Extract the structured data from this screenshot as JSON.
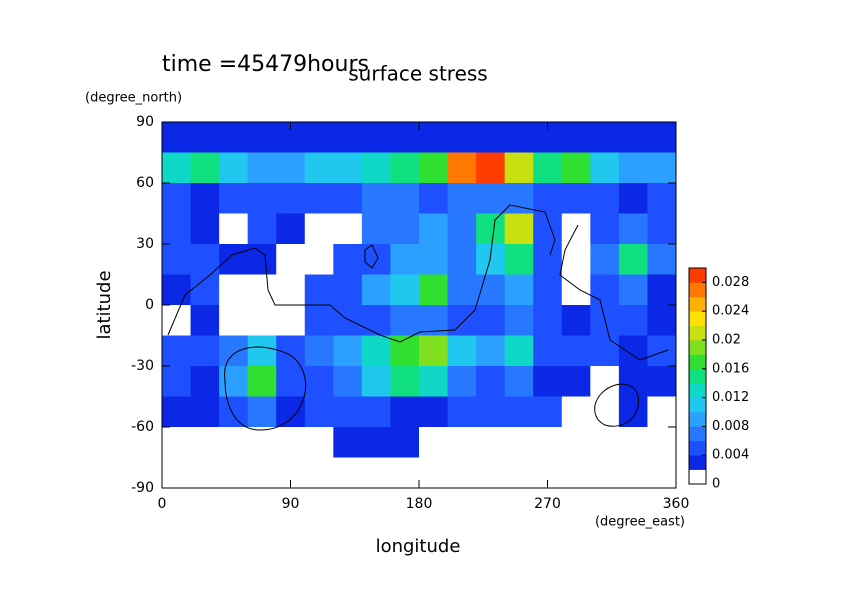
{
  "chart_data": {
    "type": "contour",
    "title": "surface stress",
    "subtitle": "time =45479hours",
    "xlabel": "longitude",
    "xunit": "(degree_east)",
    "ylabel": "latitude",
    "yunit": "(degree_north)",
    "xlim": [
      0,
      360
    ],
    "xticks": [
      0,
      90,
      180,
      270,
      360
    ],
    "ylim": [
      -90,
      90
    ],
    "yticks": [
      -90,
      -60,
      -30,
      0,
      30,
      60,
      90
    ],
    "x": [
      10,
      30,
      50,
      70,
      90,
      110,
      130,
      150,
      170,
      190,
      210,
      230,
      250,
      270,
      290,
      310,
      330,
      350
    ],
    "y": [
      82.5,
      67.5,
      52.5,
      37.5,
      22.5,
      7.5,
      -7.5,
      -22.5,
      -37.5,
      -52.5,
      -67.5,
      -82.5
    ],
    "z": [
      [
        0.003,
        0.003,
        0.003,
        0.003,
        0.003,
        0.003,
        0.003,
        0.003,
        0.003,
        0.003,
        0.003,
        0.003,
        0.003,
        0.003,
        0.003,
        0.003,
        0.003,
        0.003
      ],
      [
        0.012,
        0.014,
        0.01,
        0.008,
        0.008,
        0.01,
        0.01,
        0.012,
        0.014,
        0.016,
        0.026,
        0.032,
        0.02,
        0.014,
        0.016,
        0.01,
        0.008,
        0.008
      ],
      [
        0.004,
        0.003,
        0.004,
        0.004,
        0.005,
        0.004,
        0.005,
        0.006,
        0.006,
        0.005,
        0.006,
        0.006,
        0.006,
        0.005,
        0.004,
        0.004,
        0.003,
        0.004
      ],
      [
        0.004,
        0.003,
        0.001,
        0.004,
        0.003,
        0.001,
        0.001,
        0.006,
        0.006,
        0.008,
        0.006,
        0.014,
        0.02,
        0.004,
        0.001,
        0.004,
        0.006,
        0.004
      ],
      [
        0.004,
        0.005,
        0.003,
        0.003,
        0.001,
        0.001,
        0.004,
        0.005,
        0.008,
        0.008,
        0.006,
        0.01,
        0.014,
        0.004,
        0.001,
        0.006,
        0.014,
        0.006
      ],
      [
        0.003,
        0.004,
        0.001,
        0.001,
        0.001,
        0.004,
        0.005,
        0.008,
        0.01,
        0.016,
        0.006,
        0.006,
        0.008,
        0.004,
        0.001,
        0.004,
        0.006,
        0.003
      ],
      [
        0.001,
        0.002,
        0.001,
        0.001,
        0.001,
        0.004,
        0.004,
        0.005,
        0.006,
        0.006,
        0.004,
        0.004,
        0.006,
        0.004,
        0.003,
        0.004,
        0.004,
        0.002
      ],
      [
        0.004,
        0.005,
        0.006,
        0.01,
        0.005,
        0.006,
        0.008,
        0.012,
        0.016,
        0.018,
        0.01,
        0.008,
        0.012,
        0.005,
        0.004,
        0.004,
        0.003,
        0.004
      ],
      [
        0.004,
        0.003,
        0.008,
        0.016,
        0.005,
        0.005,
        0.006,
        0.01,
        0.014,
        0.012,
        0.006,
        0.004,
        0.006,
        0.003,
        0.002,
        0.001,
        0.003,
        0.003
      ],
      [
        0.003,
        0.002,
        0.004,
        0.006,
        0.003,
        0.004,
        0.004,
        0.004,
        0.003,
        0.003,
        0.004,
        0.004,
        0.005,
        0.004,
        0.001,
        0.001,
        0.002,
        0.001
      ],
      [
        0,
        0,
        0,
        0,
        0,
        0,
        0.003,
        0.003,
        0.002,
        0.001,
        0,
        0,
        0,
        0,
        0,
        0,
        0,
        0
      ],
      [
        0,
        0,
        0,
        0,
        0,
        0,
        0,
        0,
        0,
        0,
        0,
        0,
        0,
        0,
        0,
        0,
        0,
        0
      ]
    ],
    "colorbar": {
      "lim": [
        0,
        0.03
      ],
      "ticks": [
        0,
        0.004,
        0.008,
        0.012,
        0.016,
        0.02,
        0.024,
        0.028
      ],
      "colors": [
        "#ffffff",
        "#0a28e6",
        "#1e50ff",
        "#2878ff",
        "#2ca0ff",
        "#20c8f0",
        "#10d8c8",
        "#10e080",
        "#30e030",
        "#80e020",
        "#c8e010",
        "#ffe000",
        "#ffb000",
        "#ff7800",
        "#ff3c00"
      ]
    }
  }
}
